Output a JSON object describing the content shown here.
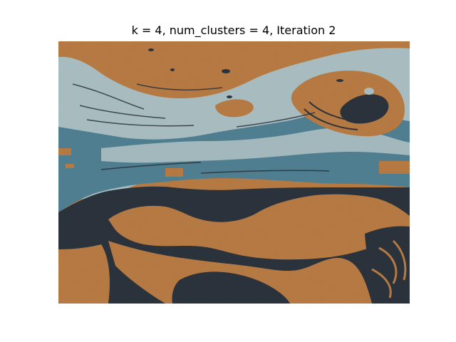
{
  "figure": {
    "title": "k = 4, num_clusters = 4, Iteration 2"
  },
  "image": {
    "description_colors": {
      "cluster_1": "#b5773f",
      "cluster_2": "#a7bcc0",
      "cluster_3": "#4b7c8e",
      "cluster_4": "#262e38"
    }
  }
}
